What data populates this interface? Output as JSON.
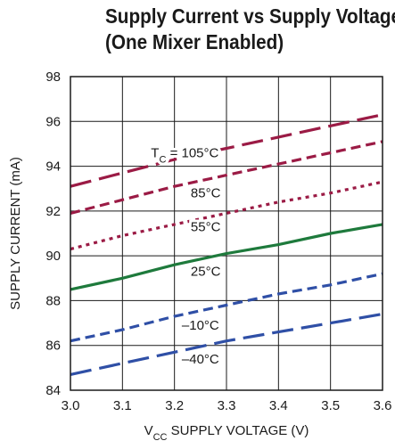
{
  "title_line1": "Supply Current vs Supply Voltage",
  "title_line2": "(One Mixer Enabled)",
  "chart_data": {
    "type": "line",
    "xlabel_prefix": "V",
    "xlabel_sub": "CC",
    "xlabel_rest": " SUPPLY VOLTAGE (V)",
    "ylabel": "SUPPLY CURRENT (mA)",
    "xlim": [
      3.0,
      3.6
    ],
    "ylim": [
      84,
      98
    ],
    "xticks": [
      "3.0",
      "3.1",
      "3.2",
      "3.3",
      "3.4",
      "3.5",
      "3.6"
    ],
    "yticks": [
      "84",
      "86",
      "88",
      "90",
      "92",
      "94",
      "96",
      "98"
    ],
    "grid": true,
    "series": [
      {
        "name": "105°C",
        "label_prefix": "T",
        "label_sub": "C",
        "label_rest": " = 105°C",
        "color": "#9b1b45",
        "dash": "long",
        "x": [
          3.0,
          3.1,
          3.2,
          3.3,
          3.4,
          3.5,
          3.6
        ],
        "y": [
          93.1,
          93.7,
          94.3,
          94.8,
          95.3,
          95.8,
          96.3
        ]
      },
      {
        "name": "85°C",
        "label": "85°C",
        "color": "#9b1b45",
        "dash": "short",
        "x": [
          3.0,
          3.1,
          3.2,
          3.3,
          3.4,
          3.5,
          3.6
        ],
        "y": [
          91.9,
          92.5,
          93.1,
          93.6,
          94.1,
          94.6,
          95.1
        ]
      },
      {
        "name": "55°C",
        "label": "55°C",
        "color": "#9b1b45",
        "dash": "dot",
        "x": [
          3.0,
          3.1,
          3.2,
          3.3,
          3.4,
          3.5,
          3.6
        ],
        "y": [
          90.3,
          90.9,
          91.4,
          91.9,
          92.4,
          92.8,
          93.3
        ]
      },
      {
        "name": "25°C",
        "label": "25°C",
        "color": "#1e7a3c",
        "dash": "solid",
        "x": [
          3.0,
          3.1,
          3.2,
          3.3,
          3.4,
          3.5,
          3.6
        ],
        "y": [
          88.5,
          89.0,
          89.6,
          90.1,
          90.5,
          91.0,
          91.4
        ]
      },
      {
        "name": "-10°C",
        "label": "–10°C",
        "color": "#2f4fa6",
        "dash": "short",
        "x": [
          3.0,
          3.1,
          3.2,
          3.3,
          3.4,
          3.5,
          3.6
        ],
        "y": [
          86.2,
          86.7,
          87.3,
          87.8,
          88.3,
          88.7,
          89.2
        ]
      },
      {
        "name": "-40°C",
        "label": "–40°C",
        "color": "#2f4fa6",
        "dash": "long",
        "x": [
          3.0,
          3.1,
          3.2,
          3.3,
          3.4,
          3.5,
          3.6
        ],
        "y": [
          84.7,
          85.2,
          85.7,
          86.2,
          86.6,
          87.0,
          87.4
        ]
      }
    ]
  }
}
